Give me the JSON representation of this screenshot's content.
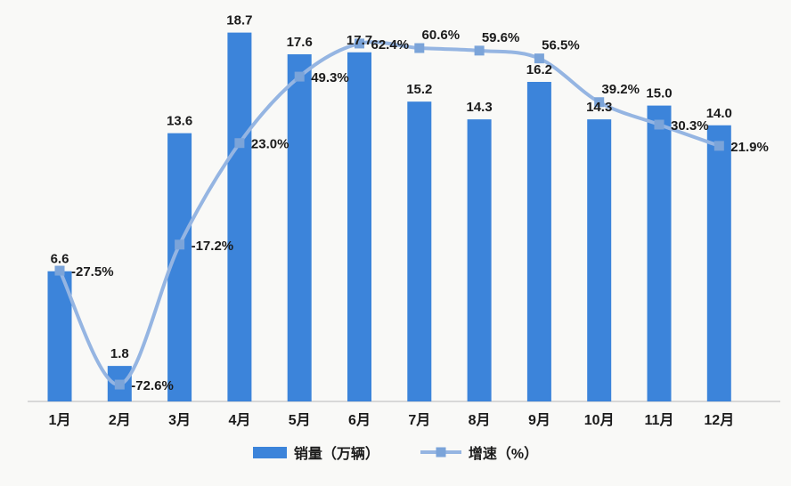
{
  "chart_data": {
    "type": "bar",
    "subtype": "bar-line-combo",
    "title": "",
    "xlabel": "",
    "ylabel": "",
    "grid": false,
    "legend_position": "bottom",
    "categories": [
      "1月",
      "2月",
      "3月",
      "4月",
      "5月",
      "6月",
      "7月",
      "8月",
      "9月",
      "10月",
      "11月",
      "12月"
    ],
    "series": [
      {
        "name": "销量（万辆）",
        "type": "bar",
        "color": "#3c84da",
        "values": [
          6.6,
          1.8,
          13.6,
          18.7,
          17.6,
          17.7,
          15.2,
          14.3,
          16.2,
          14.3,
          15.0,
          14.0
        ]
      },
      {
        "name": "增速（%）",
        "type": "line",
        "color": "#95b5e2",
        "marker_color": "#7ba4d9",
        "marker_shape": "square",
        "values": [
          -27.5,
          -72.6,
          -17.2,
          23.0,
          49.3,
          62.4,
          60.6,
          59.6,
          56.5,
          39.2,
          30.3,
          21.9
        ]
      }
    ],
    "pct_label_anchor": [
      "right",
      "right",
      "right",
      "right",
      "right",
      "right",
      "above",
      "above",
      "above",
      "above",
      "right",
      "right"
    ],
    "bar_ylim": [
      0,
      20
    ],
    "pct_ylim": [
      -80,
      80
    ]
  },
  "palette": {
    "background": "#f9f9f7",
    "axis_line": "#d8d8d8",
    "label_text": "#1b1b1b"
  }
}
